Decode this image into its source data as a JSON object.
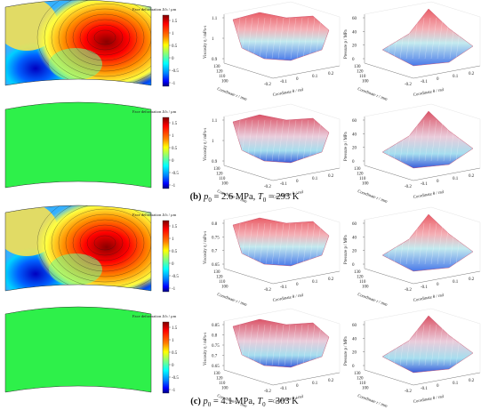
{
  "figure": {
    "captions": [
      {
        "letter": "(b)",
        "p_sym": "p",
        "p_sub": "0",
        "p_text": " = 2.6 MPa, ",
        "t_sym": "T",
        "t_sub": "0",
        "t_text": " = 293 K"
      },
      {
        "letter": "(c)",
        "p_sym": "p",
        "p_sub": "0",
        "p_text": " = 4.1 MPa, ",
        "t_sym": "T",
        "t_sub": "0",
        "t_text": " = 303 K"
      }
    ],
    "colorbar_title": "Face deformation  Δ h  /  μm",
    "colorbar_ticks_top": [
      "1.5",
      "1",
      "0.5",
      "0",
      "-0.5",
      "-1"
    ],
    "colorbar_ticks_bottom": [
      "1.5",
      "1",
      "0.5",
      "0",
      "-0.5",
      "-1"
    ],
    "colorscale": [
      "#7f0000",
      "#ff0000",
      "#ff8000",
      "#ffff00",
      "#80ff80",
      "#00ffff",
      "#0080ff",
      "#0000ff",
      "#00007f"
    ],
    "uniform_green": "#2ef04a",
    "visc_axis": {
      "zlabel": "Viscosity η / mPa·s",
      "rlabel": "Coordinate r / mm",
      "thlabel": "Coordinate θ / rad",
      "r_ticks": [
        "130",
        "120",
        "110",
        "100"
      ],
      "th_ticks": [
        "-0.2",
        "-0.1",
        "0",
        "0.1",
        "0.2"
      ]
    },
    "press_axis": {
      "zlabel": "Pressure p / MPa",
      "rlabel": "Coordinate r / mm",
      "thlabel": "Coordinate θ / rad",
      "r_ticks": [
        "130",
        "120",
        "110",
        "100"
      ],
      "th_ticks": [
        "-0.2",
        "-0.1",
        "0",
        "0.1",
        "0.2"
      ]
    },
    "rows": [
      {
        "visc_z": [
          "1.1",
          "1",
          "0.9"
        ],
        "press_z": [
          "60",
          "40",
          "20",
          "0"
        ]
      },
      {
        "visc_z": [
          "1.1",
          "1",
          "0.9"
        ],
        "press_z": [
          "60",
          "40",
          "20",
          "0"
        ]
      },
      {
        "visc_z": [
          "0.8",
          "0.75",
          "0.7",
          "0.65"
        ],
        "press_z": [
          "60",
          "40",
          "20",
          "0"
        ]
      },
      {
        "visc_z": [
          "0.85",
          "0.8",
          "0.75",
          "0.7",
          "0.65"
        ],
        "press_z": [
          "60",
          "40",
          "20",
          "0"
        ]
      }
    ]
  }
}
